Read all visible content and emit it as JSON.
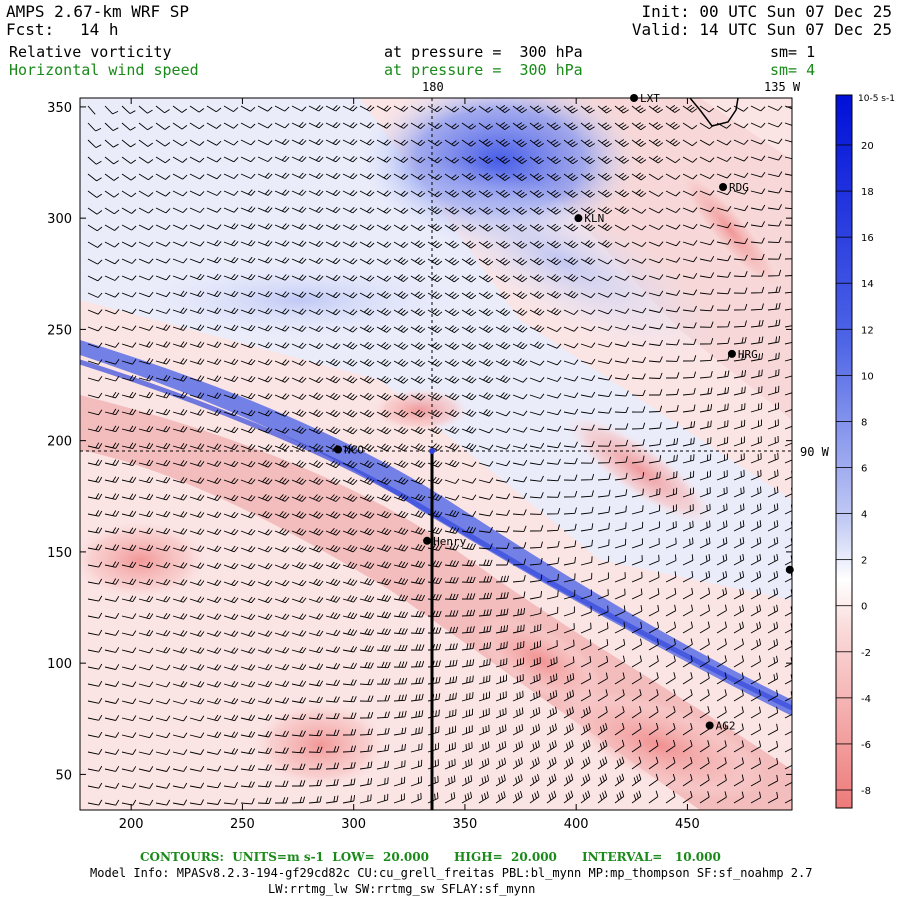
{
  "header": {
    "title": "AMPS 2.67-km WRF SP",
    "fcst_label": "Fcst:",
    "fcst_value": "14 h",
    "init": "Init: 00 UTC Sun 07 Dec 25",
    "valid": "Valid: 14 UTC Sun 07 Dec 25",
    "field1": "Relative vorticity",
    "field1_level": "at pressure =  300 hPa",
    "field1_sm": "sm= 1",
    "field2": "Horizontal wind speed",
    "field2_level": "at pressure =  300 hPa",
    "field2_sm": "sm= 4"
  },
  "map": {
    "x_ticks": [
      "200",
      "250",
      "300",
      "350",
      "400",
      "450"
    ],
    "y_ticks": [
      "350",
      "300",
      "250",
      "200",
      "150",
      "100",
      "50"
    ],
    "x_range": [
      177,
      497
    ],
    "y_range": [
      34,
      354
    ],
    "lon_labels": [
      "180",
      "135 W"
    ],
    "lat_label": "90 W",
    "stations": [
      {
        "name": "LXT",
        "x": 426,
        "y": 354
      },
      {
        "name": "RDG",
        "x": 466,
        "y": 314
      },
      {
        "name": "KLN",
        "x": 401,
        "y": 300
      },
      {
        "name": "HRG",
        "x": 470,
        "y": 239
      },
      {
        "name": "NCO",
        "x": 293,
        "y": 196
      },
      {
        "name": "Henry",
        "x": 333,
        "y": 155
      },
      {
        "name": "AG2",
        "x": 460,
        "y": 72
      },
      {
        "name": "",
        "x": 496,
        "y": 142
      }
    ],
    "colorbar": {
      "unit": "10-5 s-1",
      "labels": [
        "20",
        "18",
        "16",
        "14",
        "12",
        "10",
        "8",
        "6",
        "4",
        "2",
        "0",
        "-2",
        "-4",
        "-6",
        "-8"
      ]
    },
    "colors": {
      "positive": "#e06060",
      "negative": "#3040d8",
      "strong_negative": "#0010d0"
    }
  },
  "footer": {
    "contours": "CONTOURS:  UNITS=m s-1  LOW=  20.000      HIGH=  20.000      INTERVAL=   10.000",
    "model_info": "Model Info: MPASv8.2.3-194-gf29cd82c CU:cu_grell_freitas PBL:bl_mynn MP:mp_thompson SF:sf_noahmp 2.7",
    "physics": "LW:rrtmg_lw SW:rrtmg_sw SFLAY:sf_mynn"
  }
}
